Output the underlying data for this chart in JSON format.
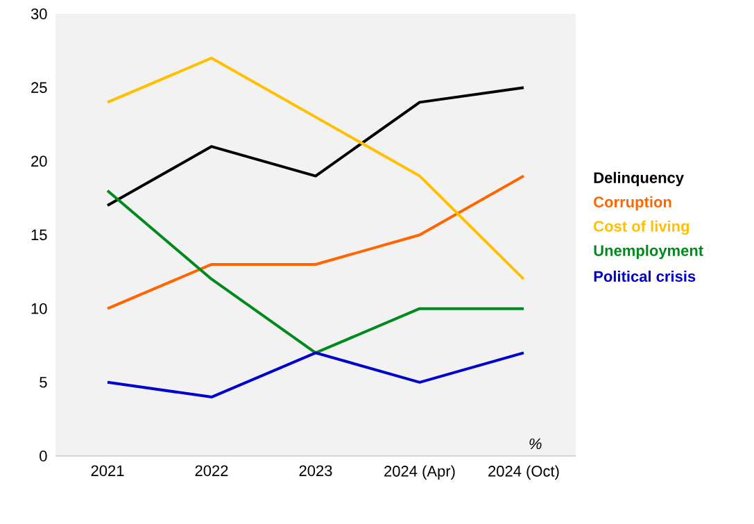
{
  "chart_data": {
    "type": "line",
    "categories": [
      "2021",
      "2022",
      "2023",
      "2024 (Apr)",
      "2024 (Oct)"
    ],
    "series": [
      {
        "name": "Delinquency",
        "color": "#000000",
        "values": [
          17,
          21,
          19,
          24,
          25
        ]
      },
      {
        "name": "Corruption",
        "color": "#ff6600",
        "values": [
          10,
          13,
          13,
          15,
          19
        ]
      },
      {
        "name": "Cost of living",
        "color": "#ffc000",
        "values": [
          24,
          27,
          23,
          19,
          12
        ]
      },
      {
        "name": "Unemployment",
        "color": "#008a1e",
        "values": [
          18,
          12,
          7,
          10,
          10
        ]
      },
      {
        "name": "Political crisis",
        "color": "#0000cc",
        "values": [
          5,
          4,
          7,
          5,
          7
        ]
      }
    ],
    "ylim": [
      0,
      30
    ],
    "yticks": [
      0,
      5,
      10,
      15,
      20,
      25,
      30
    ],
    "grid": false,
    "legend": "right",
    "marker": "none",
    "line_style": "solid",
    "annotations": [
      "%"
    ]
  }
}
